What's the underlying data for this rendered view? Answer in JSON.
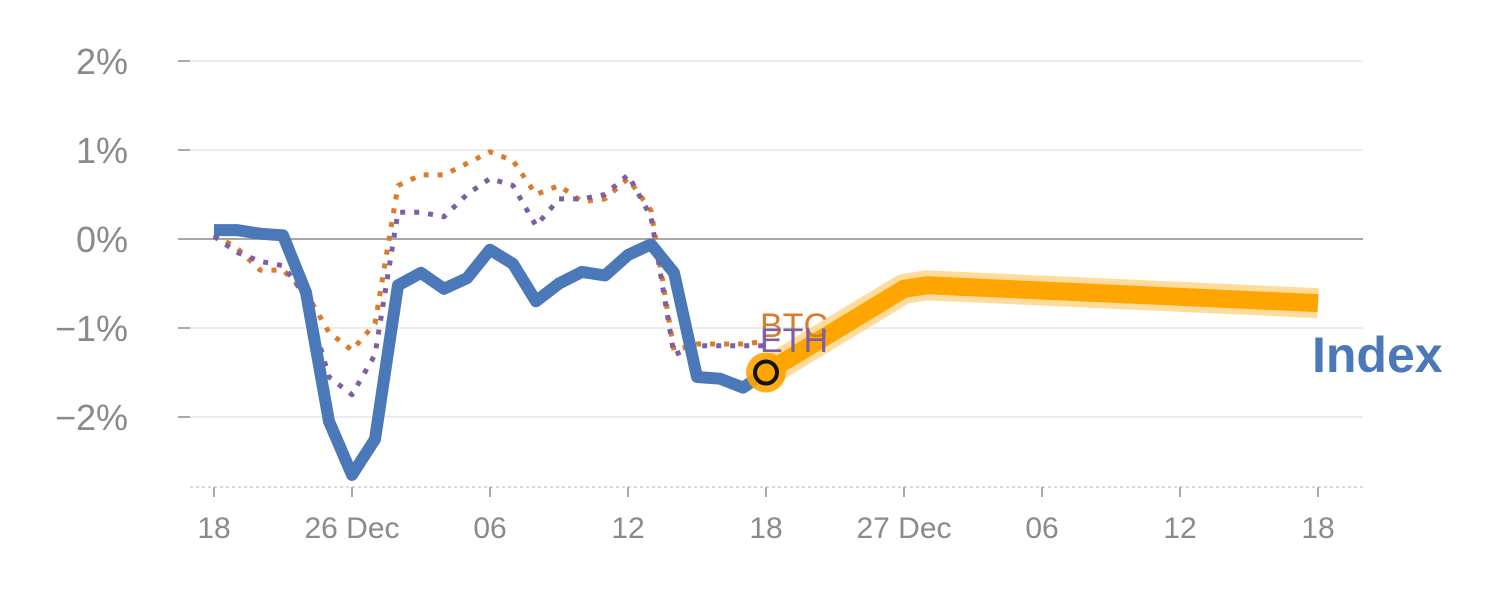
{
  "chart_data": {
    "type": "line",
    "title": "",
    "xlabel": "",
    "ylabel": "",
    "x_ticks": [
      {
        "x": 0,
        "label": "18"
      },
      {
        "x": 6,
        "label": "26 Dec"
      },
      {
        "x": 12,
        "label": "06"
      },
      {
        "x": 18,
        "label": "12"
      },
      {
        "x": 24,
        "label": "18"
      },
      {
        "x": 30,
        "label": "27 Dec"
      },
      {
        "x": 36,
        "label": "06"
      },
      {
        "x": 42,
        "label": "12"
      },
      {
        "x": 48,
        "label": "18"
      }
    ],
    "y_ticks": [
      {
        "y": 2,
        "label": "2%"
      },
      {
        "y": 1,
        "label": "1%"
      },
      {
        "y": 0,
        "label": "0%"
      },
      {
        "y": -1,
        "label": "−1%"
      },
      {
        "y": -2,
        "label": "−2%"
      }
    ],
    "xlim": [
      -1,
      50
    ],
    "ylim": [
      -2.8,
      2.2
    ],
    "series": [
      {
        "name": "BTC",
        "style": "dotted",
        "color": "#d97c2b",
        "x": [
          0,
          1,
          2,
          3,
          4,
          5,
          6,
          7,
          8,
          9,
          10,
          11,
          12,
          13,
          14,
          15,
          16,
          17,
          18,
          19,
          20,
          21,
          22,
          23,
          24
        ],
        "y": [
          0.05,
          -0.1,
          -0.35,
          -0.35,
          -0.6,
          -1.05,
          -1.25,
          -0.95,
          0.6,
          0.72,
          0.72,
          0.85,
          0.98,
          0.88,
          0.5,
          0.6,
          0.42,
          0.45,
          0.68,
          0.32,
          -1.25,
          -1.18,
          -1.18,
          -1.18,
          -1.15
        ]
      },
      {
        "name": "ETH",
        "style": "dotted",
        "color": "#7d5fa3",
        "x": [
          0,
          1,
          2,
          3,
          4,
          5,
          6,
          7,
          8,
          9,
          10,
          11,
          12,
          13,
          14,
          15,
          16,
          17,
          18,
          19,
          20,
          21,
          22,
          23,
          24
        ],
        "y": [
          0.03,
          -0.15,
          -0.25,
          -0.3,
          -0.65,
          -1.55,
          -1.75,
          -1.3,
          0.3,
          0.3,
          0.25,
          0.5,
          0.68,
          0.6,
          0.15,
          0.45,
          0.45,
          0.5,
          0.72,
          0.25,
          -1.3,
          -1.2,
          -1.2,
          -1.2,
          -1.2
        ]
      },
      {
        "name": "Index",
        "style": "solid",
        "color": "#4a78b8",
        "x": [
          0,
          1,
          2,
          3,
          4,
          5,
          6,
          7,
          8,
          9,
          10,
          11,
          12,
          13,
          14,
          15,
          16,
          17,
          18,
          19,
          20,
          21,
          22,
          23,
          24
        ],
        "y": [
          0.1,
          0.1,
          0.06,
          0.04,
          -0.6,
          -2.05,
          -2.65,
          -2.25,
          -0.52,
          -0.38,
          -0.56,
          -0.44,
          -0.12,
          -0.28,
          -0.7,
          -0.5,
          -0.37,
          -0.41,
          -0.18,
          -0.06,
          -0.38,
          -1.55,
          -1.57,
          -1.67,
          -1.5
        ]
      }
    ],
    "forecast": {
      "name": "Index forecast",
      "color": "#ffa500",
      "x": [
        24,
        30,
        31,
        48
      ],
      "y": [
        -1.5,
        -0.56,
        -0.52,
        -0.72
      ]
    },
    "current_point": {
      "x": 24,
      "y": -1.5
    },
    "labels": [
      {
        "text": "BTC",
        "series": "BTC"
      },
      {
        "text": "ETH",
        "series": "ETH"
      },
      {
        "text": "Index",
        "series": "Index"
      }
    ]
  }
}
